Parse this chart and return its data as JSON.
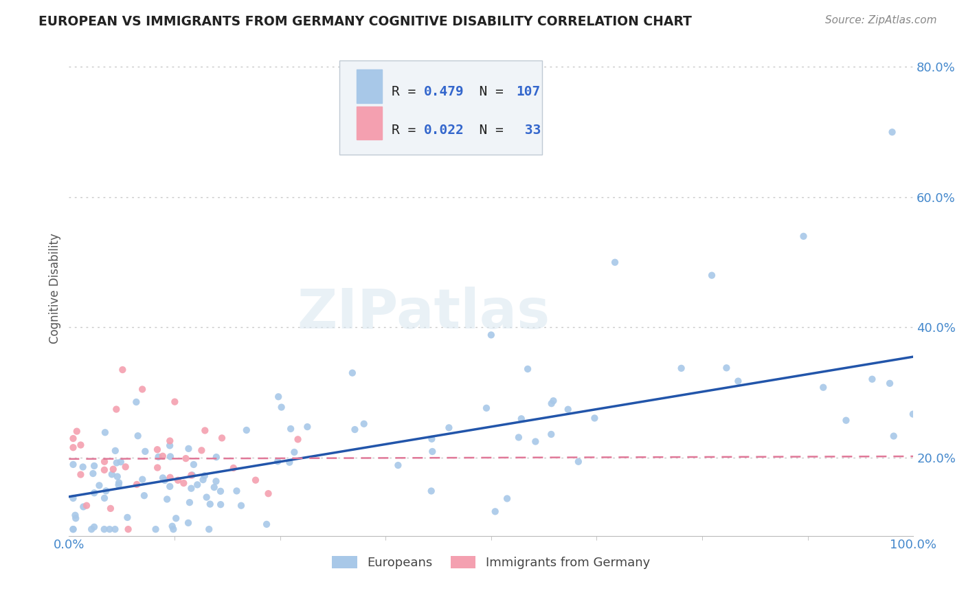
{
  "title": "EUROPEAN VS IMMIGRANTS FROM GERMANY COGNITIVE DISABILITY CORRELATION CHART",
  "source": "Source: ZipAtlas.com",
  "ylabel": "Cognitive Disability",
  "xlim": [
    0.0,
    1.0
  ],
  "ylim": [
    0.08,
    0.84
  ],
  "y_ticks": [
    0.2,
    0.4,
    0.6,
    0.8
  ],
  "y_tick_labels": [
    "20.0%",
    "40.0%",
    "60.0%",
    "80.0%"
  ],
  "european_color": "#a8c8e8",
  "immigrant_color": "#f4a0b0",
  "european_R": 0.479,
  "european_N": 107,
  "immigrant_R": 0.022,
  "immigrant_N": 33,
  "trend_blue": "#2255aa",
  "trend_pink": "#e07898",
  "watermark": "ZIPatlas",
  "background_color": "#ffffff",
  "grid_color": "#c8c8c8",
  "title_color": "#222222",
  "axis_label_color": "#555555",
  "tick_color": "#4488cc",
  "eu_trend_x0": 0.0,
  "eu_trend_y0": 0.14,
  "eu_trend_x1": 1.0,
  "eu_trend_y1": 0.355,
  "im_trend_x0": 0.0,
  "im_trend_y0": 0.198,
  "im_trend_x1": 1.0,
  "im_trend_y1": 0.202
}
